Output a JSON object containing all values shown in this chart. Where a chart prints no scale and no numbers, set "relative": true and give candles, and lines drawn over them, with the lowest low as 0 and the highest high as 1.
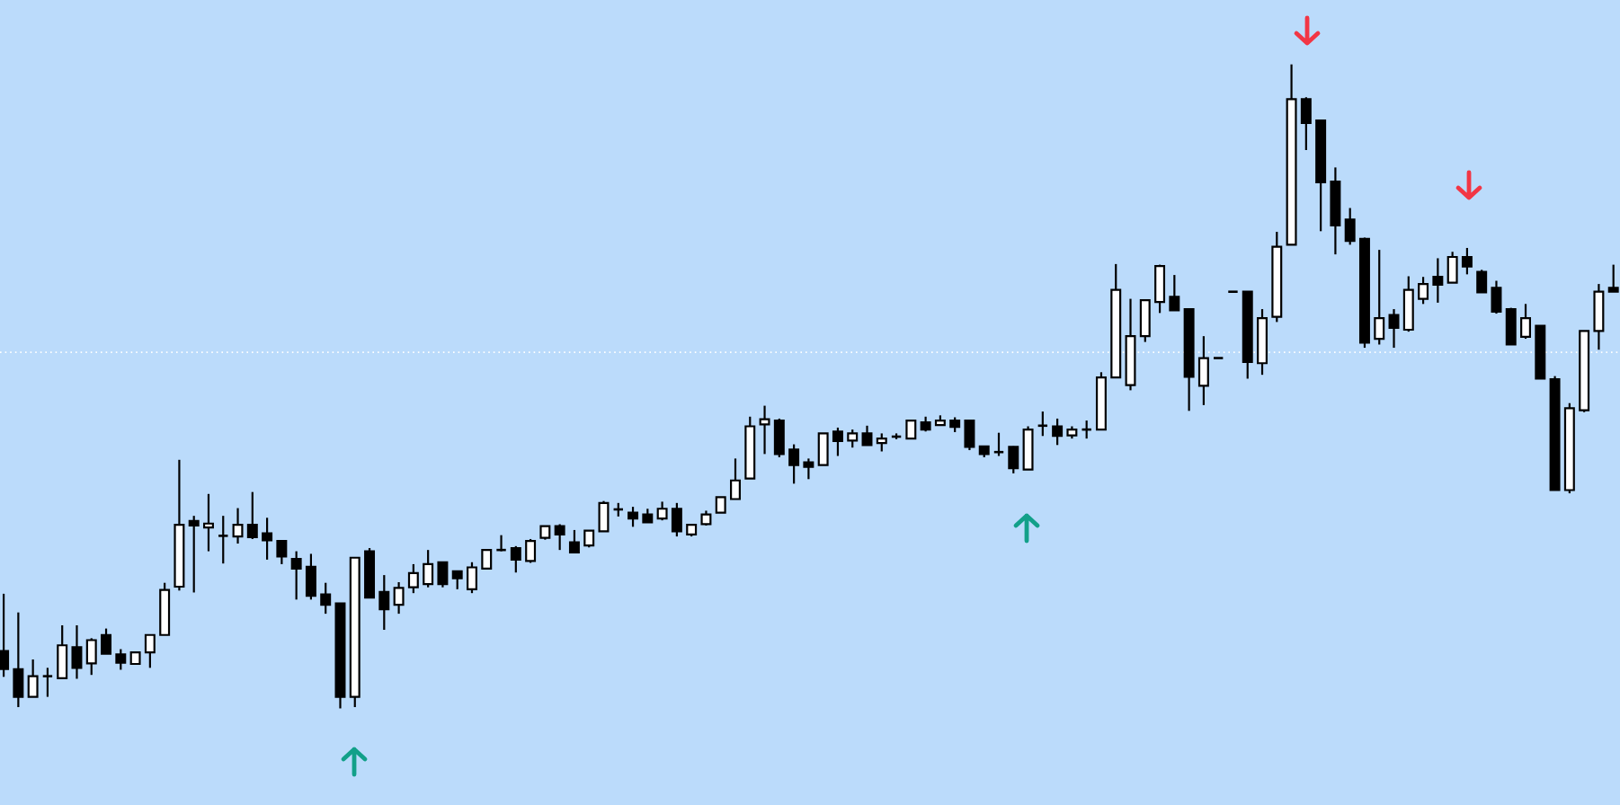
{
  "chart_data": {
    "type": "candlestick",
    "relative": true,
    "categories": [
      null,
      null,
      null,
      null,
      null,
      null,
      null,
      null,
      null,
      null,
      null,
      null,
      null,
      null,
      null,
      null,
      null,
      null,
      null,
      null,
      null,
      null,
      null,
      null,
      null,
      null,
      null,
      null,
      null,
      null,
      null,
      null,
      null,
      null,
      null,
      null,
      null,
      null,
      null,
      null,
      null,
      null,
      null,
      null,
      null,
      null,
      null,
      null,
      null,
      null,
      null,
      null,
      null,
      null,
      null,
      null,
      null,
      null,
      null,
      null,
      null,
      null,
      null,
      null,
      null,
      null,
      null,
      null,
      null,
      null,
      null,
      null,
      null,
      null,
      null,
      null,
      null,
      null,
      null,
      null,
      null,
      null,
      null,
      null,
      null,
      null,
      null,
      null,
      null,
      null,
      null,
      null,
      null,
      null,
      null,
      null,
      null,
      null,
      null,
      null,
      null,
      null,
      null,
      null,
      null,
      null,
      null,
      null,
      null,
      null,
      null
    ],
    "ohlc": [
      [
        0.089,
        0.178,
        0.049,
        0.061
      ],
      [
        0.061,
        0.149,
        0.002,
        0.018
      ],
      [
        0.018,
        0.076,
        0.018,
        0.05
      ],
      [
        0.05,
        0.063,
        0.018,
        0.05
      ],
      [
        0.047,
        0.129,
        0.047,
        0.098
      ],
      [
        0.095,
        0.129,
        0.046,
        0.063
      ],
      [
        0.07,
        0.109,
        0.052,
        0.106
      ],
      [
        0.114,
        0.124,
        0.085,
        0.085
      ],
      [
        0.084,
        0.092,
        0.06,
        0.071
      ],
      [
        0.069,
        0.087,
        0.069,
        0.087
      ],
      [
        0.087,
        0.114,
        0.063,
        0.114
      ],
      [
        0.114,
        0.195,
        0.114,
        0.184
      ],
      [
        0.189,
        0.386,
        0.183,
        0.285
      ],
      [
        0.291,
        0.299,
        0.18,
        0.284
      ],
      [
        0.281,
        0.333,
        0.244,
        0.287
      ],
      [
        0.268,
        0.299,
        0.225,
        0.268
      ],
      [
        0.267,
        0.311,
        0.256,
        0.285
      ],
      [
        0.285,
        0.336,
        0.263,
        0.266
      ],
      [
        0.272,
        0.296,
        0.231,
        0.261
      ],
      [
        0.26,
        0.26,
        0.224,
        0.236
      ],
      [
        0.232,
        0.244,
        0.169,
        0.217
      ],
      [
        0.22,
        0.24,
        0.169,
        0.175
      ],
      [
        0.177,
        0.195,
        0.147,
        0.161
      ],
      [
        0.163,
        0.163,
        0,
        0.018
      ],
      [
        0.018,
        0.234,
        0.002,
        0.234
      ],
      [
        0.244,
        0.249,
        0.172,
        0.172
      ],
      [
        0.181,
        0.207,
        0.122,
        0.154
      ],
      [
        0.161,
        0.196,
        0.147,
        0.187
      ],
      [
        0.188,
        0.224,
        0.179,
        0.21
      ],
      [
        0.193,
        0.246,
        0.188,
        0.224
      ],
      [
        0.227,
        0.227,
        0.188,
        0.193
      ],
      [
        0.213,
        0.213,
        0.185,
        0.202
      ],
      [
        0.185,
        0.227,
        0.179,
        0.219
      ],
      [
        0.217,
        0.246,
        0.216,
        0.246
      ],
      [
        0.246,
        0.269,
        0.244,
        0.246
      ],
      [
        0.249,
        0.252,
        0.211,
        0.231
      ],
      [
        0.229,
        0.263,
        0.226,
        0.26
      ],
      [
        0.265,
        0.283,
        0.262,
        0.283
      ],
      [
        0.283,
        0.286,
        0.246,
        0.27
      ],
      [
        0.258,
        0.277,
        0.242,
        0.242
      ],
      [
        0.253,
        0.276,
        0.25,
        0.276
      ],
      [
        0.275,
        0.322,
        0.275,
        0.319
      ],
      [
        0.309,
        0.319,
        0.298,
        0.309
      ],
      [
        0.304,
        0.313,
        0.282,
        0.295
      ],
      [
        0.301,
        0.31,
        0.289,
        0.289
      ],
      [
        0.295,
        0.321,
        0.292,
        0.31
      ],
      [
        0.31,
        0.319,
        0.267,
        0.275
      ],
      [
        0.27,
        0.285,
        0.267,
        0.285
      ],
      [
        0.286,
        0.307,
        0.284,
        0.301
      ],
      [
        0.304,
        0.328,
        0.304,
        0.328
      ],
      [
        0.325,
        0.388,
        0.325,
        0.354
      ],
      [
        0.357,
        0.453,
        0.357,
        0.438
      ],
      [
        0.441,
        0.47,
        0.395,
        0.449
      ],
      [
        0.447,
        0.45,
        0.39,
        0.395
      ],
      [
        0.402,
        0.41,
        0.349,
        0.378
      ],
      [
        0.382,
        0.388,
        0.356,
        0.375
      ],
      [
        0.378,
        0.427,
        0.378,
        0.427
      ],
      [
        0.43,
        0.436,
        0.392,
        0.415
      ],
      [
        0.416,
        0.433,
        0.405,
        0.427
      ],
      [
        0.427,
        0.439,
        0.409,
        0.409
      ],
      [
        0.412,
        0.427,
        0.399,
        0.419
      ],
      [
        0.422,
        0.427,
        0.418,
        0.422
      ],
      [
        0.419,
        0.447,
        0.419,
        0.447
      ],
      [
        0.444,
        0.453,
        0.43,
        0.433
      ],
      [
        0.44,
        0.455,
        0.44,
        0.447
      ],
      [
        0.447,
        0.452,
        0.429,
        0.437
      ],
      [
        0.447,
        0.447,
        0.401,
        0.406
      ],
      [
        0.407,
        0.407,
        0.39,
        0.395
      ],
      [
        0.398,
        0.428,
        0.392,
        0.398
      ],
      [
        0.406,
        0.407,
        0.365,
        0.373
      ],
      [
        0.371,
        0.438,
        0.371,
        0.433
      ],
      [
        0.439,
        0.461,
        0.423,
        0.439
      ],
      [
        0.438,
        0.45,
        0.409,
        0.423
      ],
      [
        0.424,
        0.438,
        0.419,
        0.433
      ],
      [
        0.433,
        0.447,
        0.419,
        0.433
      ],
      [
        0.433,
        0.522,
        0.433,
        0.514
      ],
      [
        0.514,
        0.69,
        0.514,
        0.65
      ],
      [
        0.502,
        0.636,
        0.494,
        0.578
      ],
      [
        0.578,
        0.634,
        0.569,
        0.634
      ],
      [
        0.631,
        0.689,
        0.614,
        0.687
      ],
      [
        0.639,
        0.673,
        0.618,
        0.618
      ],
      [
        0.62,
        0.62,
        0.462,
        0.515
      ],
      [
        0.501,
        0.578,
        0.471,
        0.544
      ],
      [
        0.544,
        0.544,
        0.544,
        0.544
      ],
      [
        0.647,
        0.647,
        0.647,
        0.647
      ],
      [
        0.647,
        0.647,
        0.512,
        0.538
      ],
      [
        0.536,
        0.62,
        0.518,
        0.606
      ],
      [
        0.608,
        0.74,
        0.6,
        0.717
      ],
      [
        0.72,
        1,
        0.72,
        0.946
      ],
      [
        0.946,
        0.949,
        0.867,
        0.909
      ],
      [
        0.913,
        0.913,
        0.741,
        0.817
      ],
      [
        0.818,
        0.84,
        0.705,
        0.75
      ],
      [
        0.759,
        0.777,
        0.72,
        0.726
      ],
      [
        0.729,
        0.731,
        0.56,
        0.568
      ],
      [
        0.574,
        0.712,
        0.565,
        0.606
      ],
      [
        0.611,
        0.62,
        0.56,
        0.591
      ],
      [
        0.588,
        0.671,
        0.585,
        0.65
      ],
      [
        0.636,
        0.67,
        0.628,
        0.659
      ],
      [
        0.67,
        0.699,
        0.63,
        0.658
      ],
      [
        0.661,
        0.709,
        0.661,
        0.701
      ],
      [
        0.701,
        0.715,
        0.674,
        0.686
      ],
      [
        0.678,
        0.681,
        0.646,
        0.646
      ],
      [
        0.653,
        0.664,
        0.613,
        0.616
      ],
      [
        0.62,
        0.622,
        0.565,
        0.565
      ],
      [
        0.577,
        0.628,
        0.574,
        0.606
      ],
      [
        0.594,
        0.594,
        0.512,
        0.512
      ],
      [
        0.511,
        0.516,
        0.339,
        0.339
      ],
      [
        0.339,
        0.474,
        0.334,
        0.466
      ],
      [
        0.463,
        0.586,
        0.46,
        0.586
      ],
      [
        0.586,
        0.659,
        0.557,
        0.647
      ],
      [
        0.653,
        0.689,
        0.647,
        0.647
      ]
    ],
    "ref_lines": [
      {
        "axis": "y",
        "value": 0.553,
        "color": "#ffffff",
        "line_style": "dotted"
      }
    ]
  }
}
